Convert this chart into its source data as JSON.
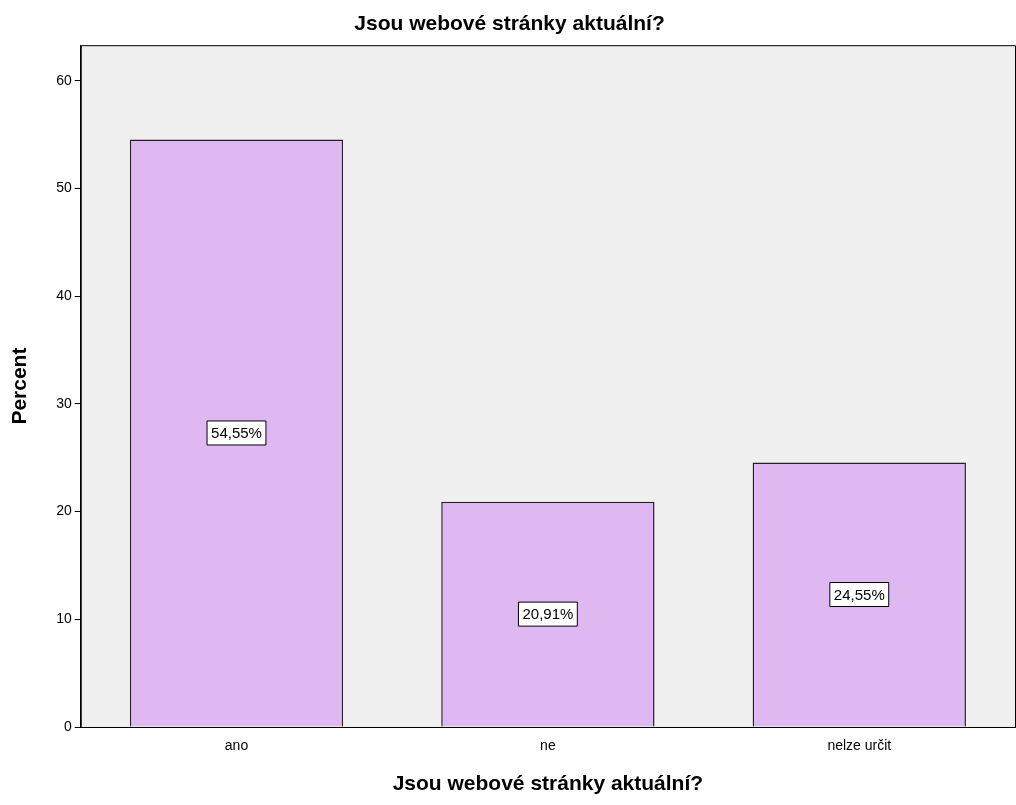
{
  "chart_data": {
    "type": "bar",
    "title": "Jsou webové stránky aktuální?",
    "xlabel": "Jsou webové stránky aktuální?",
    "ylabel": "Percent",
    "categories": [
      "ano",
      "ne",
      "nelze určit"
    ],
    "values": [
      54.55,
      20.91,
      24.55
    ],
    "value_labels": [
      "54,55%",
      "20,91%",
      "24,55%"
    ],
    "color": "#dfb8f2",
    "ylim": [
      0,
      63.3
    ],
    "yticks": [
      0,
      10,
      20,
      30,
      40,
      50,
      60
    ]
  }
}
